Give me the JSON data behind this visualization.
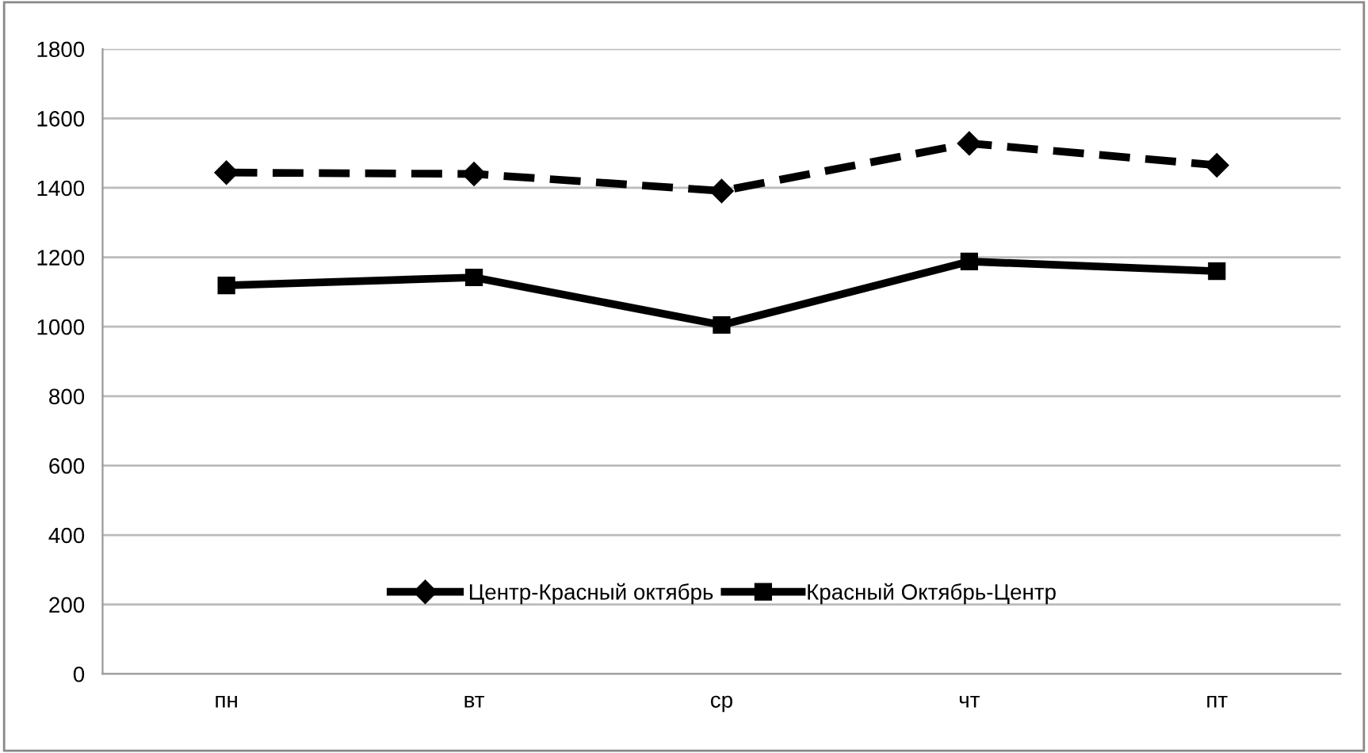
{
  "chart_data": {
    "type": "line",
    "categories": [
      "пн",
      "вт",
      "ср",
      "чт",
      "пт"
    ],
    "series": [
      {
        "name": "Центр-Красный октябрь",
        "color": "#000000",
        "values": [
          1444,
          1440,
          1391,
          1528,
          1465
        ],
        "marker": "diamond",
        "line_style": "dashed"
      },
      {
        "name": "Красный Октябрь-Центр",
        "color": "#000000",
        "values": [
          1119,
          1142,
          1005,
          1188,
          1160
        ],
        "marker": "square",
        "line_style": "solid"
      }
    ],
    "ylim": [
      0,
      1800
    ],
    "yticks": [
      0,
      200,
      400,
      600,
      800,
      1000,
      1200,
      1400,
      1600,
      1800
    ],
    "grid": "y",
    "legend": "bottom"
  }
}
